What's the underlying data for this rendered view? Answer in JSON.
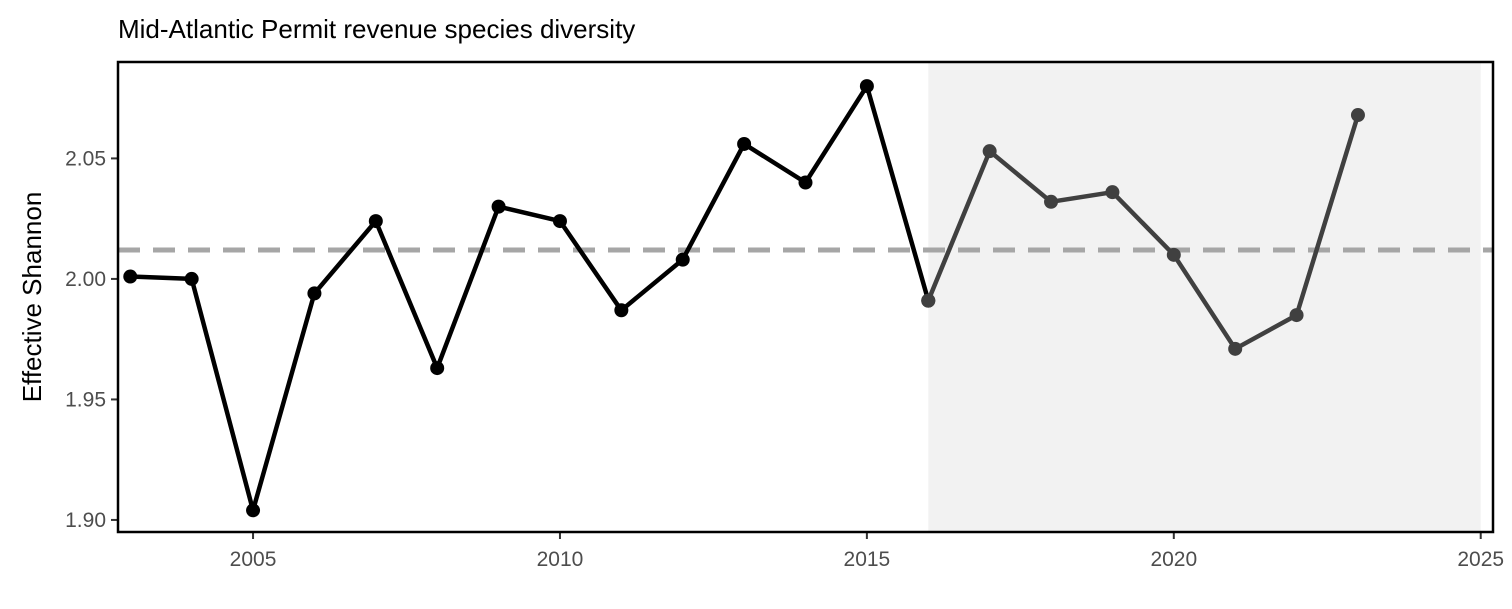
{
  "chart_data": {
    "type": "line",
    "title": "Mid-Atlantic Permit revenue species diversity",
    "xlabel": "",
    "ylabel": "Effective Shannon",
    "xlim": [
      2002.8,
      2025.2
    ],
    "ylim": [
      1.895,
      2.09
    ],
    "xticks": [
      2005,
      2010,
      2015,
      2020,
      2025
    ],
    "xtick_labels": [
      "2005",
      "2010",
      "2015",
      "2020",
      "2025"
    ],
    "yticks": [
      1.9,
      1.95,
      2.0,
      2.05
    ],
    "ytick_labels": [
      "1.90",
      "1.95",
      "2.00",
      "2.05"
    ],
    "grid": false,
    "legend": "none",
    "series": [
      {
        "color": "#000000",
        "x": [
          2003,
          2004,
          2005,
          2006,
          2007,
          2008,
          2009,
          2010,
          2011,
          2012,
          2013,
          2014,
          2015,
          2016
        ],
        "values": [
          2.001,
          2.0,
          1.904,
          1.994,
          2.024,
          1.963,
          2.03,
          2.024,
          1.987,
          2.008,
          2.056,
          2.04,
          2.08,
          1.991
        ]
      },
      {
        "color": "#404040",
        "x": [
          2016,
          2017,
          2018,
          2019,
          2020,
          2021,
          2022,
          2023
        ],
        "values": [
          1.991,
          2.053,
          2.032,
          2.036,
          2.01,
          1.971,
          1.985,
          2.068
        ]
      }
    ],
    "reference_line": {
      "value": 2.012,
      "color": "#a6a6a6",
      "style": "dashed"
    },
    "shaded_region": {
      "x": [
        2016,
        2025
      ],
      "color": "#f2f2f2"
    }
  }
}
